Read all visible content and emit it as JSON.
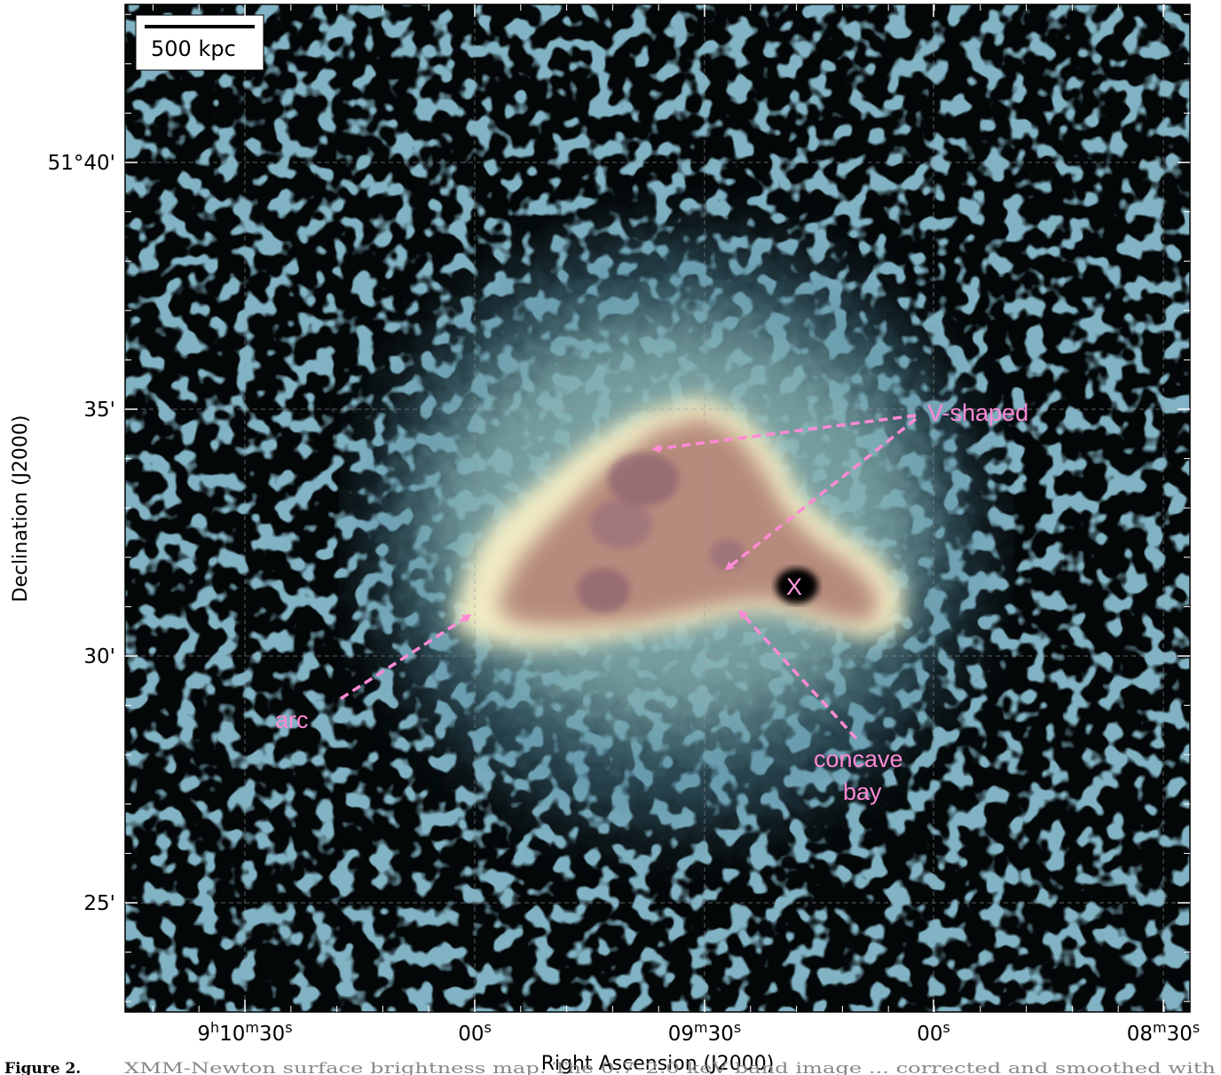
{
  "figure": {
    "caption_label": "Figure 2.",
    "caption_text": "XMM-Newton surface brightness map. The 0.7–2.0 keV band image ... corrected and smoothed with"
  },
  "axes": {
    "xlabel": "Right Ascension (J2000)",
    "ylabel": "Declination (J2000)",
    "xticks": [
      {
        "main": "9",
        "sup1": "h",
        "mid": "10",
        "sup2": "m",
        "end": "30",
        "sup3": "s"
      },
      {
        "main": "",
        "sup1": "",
        "mid": "",
        "sup2": "",
        "end": "00",
        "sup3": "s"
      },
      {
        "main": "",
        "sup1": "",
        "mid": "09",
        "sup2": "m",
        "end": "30",
        "sup3": "s"
      },
      {
        "main": "",
        "sup1": "",
        "mid": "",
        "sup2": "",
        "end": "00",
        "sup3": "s"
      },
      {
        "main": "",
        "sup1": "",
        "mid": "08",
        "sup2": "m",
        "end": "30",
        "sup3": "s"
      }
    ],
    "yticks": [
      "51°40'",
      "35'",
      "30'",
      "25'"
    ]
  },
  "scale_bar": {
    "label": "500 kpc"
  },
  "annotations": {
    "v_shaped": "V-shaped",
    "arc": "arc",
    "concave_line1": "concave",
    "concave_line2": "bay",
    "x_marker": "X"
  },
  "colors": {
    "background_sky": "#030708",
    "noise_blue": "#4f8398",
    "halo_teal": "#8fb9b7",
    "rim_cream": "#f2ecc4",
    "core_brown": "#b68a7c",
    "deep_core": "#7a5066",
    "annotation_pink": "#ff8ad6",
    "grid": "#9a9a9a"
  }
}
